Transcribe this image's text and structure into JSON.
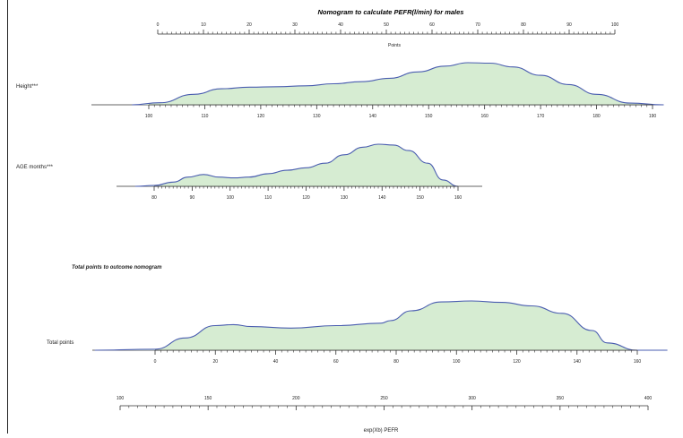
{
  "chart_data": {
    "type": "area",
    "title": "Nomogram to calculate PEFR(l/min) for males",
    "points_scale": {
      "label": "Points",
      "ticks": [
        "0",
        "10",
        "20",
        "30",
        "40",
        "50",
        "60",
        "70",
        "80",
        "90",
        "100"
      ]
    },
    "height": {
      "label": "Height***",
      "ticks": [
        "100",
        "110",
        "120",
        "130",
        "140",
        "150",
        "160",
        "170",
        "180",
        "190"
      ],
      "density_x": [
        97,
        102,
        108,
        113,
        118,
        123,
        128,
        133,
        138,
        143,
        148,
        153,
        157,
        161,
        165,
        170,
        175,
        180,
        186,
        192
      ],
      "density_y": [
        0.0,
        0.05,
        0.25,
        0.38,
        0.42,
        0.43,
        0.45,
        0.5,
        0.55,
        0.63,
        0.78,
        0.92,
        1.0,
        0.99,
        0.9,
        0.7,
        0.48,
        0.25,
        0.04,
        0.0
      ]
    },
    "age": {
      "label": "AGE months***",
      "ticks": [
        "80",
        "90",
        "100",
        "110",
        "120",
        "130",
        "140",
        "150",
        "160"
      ],
      "density_x": [
        75,
        80,
        85,
        89,
        93,
        97,
        101,
        105,
        110,
        115,
        120,
        125,
        130,
        135,
        139,
        143,
        147,
        152,
        156,
        160
      ],
      "density_y": [
        0.0,
        0.02,
        0.1,
        0.22,
        0.28,
        0.22,
        0.2,
        0.22,
        0.3,
        0.38,
        0.44,
        0.55,
        0.75,
        0.93,
        1.0,
        0.98,
        0.85,
        0.55,
        0.15,
        0.0
      ]
    },
    "total_points": {
      "heading": "Total points to outcome nomogram",
      "label": "Total points",
      "ticks": [
        "0",
        "20",
        "40",
        "60",
        "80",
        "100",
        "120",
        "140",
        "160"
      ],
      "density_x": [
        -20,
        0,
        10,
        20,
        26,
        32,
        45,
        60,
        75,
        78,
        85,
        95,
        105,
        115,
        125,
        135,
        145,
        150,
        160,
        170
      ],
      "density_y": [
        0.0,
        0.02,
        0.25,
        0.5,
        0.52,
        0.48,
        0.45,
        0.5,
        0.55,
        0.6,
        0.8,
        0.98,
        1.0,
        0.97,
        0.9,
        0.75,
        0.4,
        0.15,
        0.0,
        0.0
      ]
    },
    "outcome": {
      "label": "exp(Xb) PEFR",
      "ticks": [
        "100",
        "150",
        "200",
        "250",
        "300",
        "350",
        "400"
      ]
    }
  },
  "colors": {
    "fill": "#d6ecd2",
    "stroke": "#4a5db0",
    "axis": "#333333"
  }
}
